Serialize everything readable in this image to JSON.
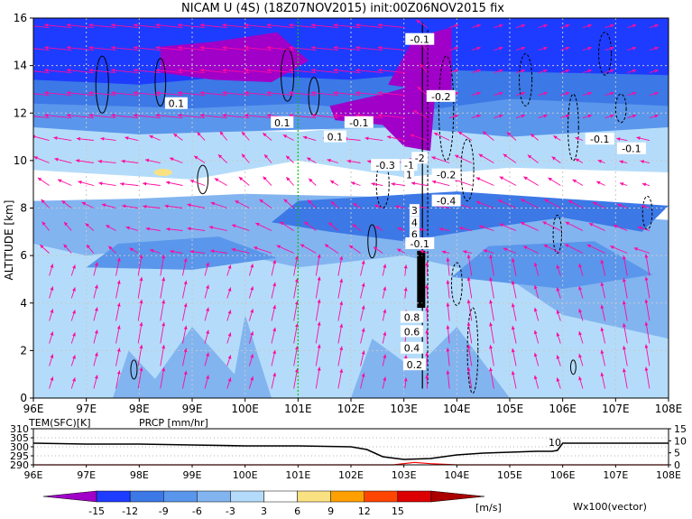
{
  "chart_data": [
    {
      "type": "heatmap",
      "title": "NICAM U (4S) (18Z07NOV2015) init:00Z06NOV2015 fix",
      "ylabel": "ALTITUDE [km]",
      "xlim": [
        96,
        108
      ],
      "ylim": [
        0,
        16
      ],
      "x_ticks": [
        "96E",
        "97E",
        "98E",
        "99E",
        "100E",
        "101E",
        "102E",
        "103E",
        "104E",
        "105E",
        "106E",
        "107E",
        "108E"
      ],
      "y_ticks": [
        "0",
        "2",
        "4",
        "6",
        "8",
        "10",
        "12",
        "14",
        "16"
      ],
      "grid": true,
      "marked_longitude": 101,
      "contour_labels": [
        {
          "x": 103.3,
          "y": 15.1,
          "text": "-0.1"
        },
        {
          "x": 103.7,
          "y": 12.7,
          "text": "-0.2"
        },
        {
          "x": 98.7,
          "y": 12.4,
          "text": "0.1"
        },
        {
          "x": 100.7,
          "y": 11.6,
          "text": "0.1"
        },
        {
          "x": 102.15,
          "y": 11.6,
          "text": "-0.1"
        },
        {
          "x": 101.7,
          "y": 11.0,
          "text": "0.1"
        },
        {
          "x": 106.7,
          "y": 10.9,
          "text": "-0.1"
        },
        {
          "x": 107.3,
          "y": 10.5,
          "text": "-0.1"
        },
        {
          "x": 102.65,
          "y": 9.8,
          "text": "-0.3"
        },
        {
          "x": 103.1,
          "y": 9.8,
          "text": "-1"
        },
        {
          "x": 103.3,
          "y": 10.1,
          "text": "-2"
        },
        {
          "x": 103.1,
          "y": 9.4,
          "text": "1"
        },
        {
          "x": 103.8,
          "y": 9.4,
          "text": "-0.2"
        },
        {
          "x": 103.8,
          "y": 8.3,
          "text": "-0.4"
        },
        {
          "x": 103.2,
          "y": 7.9,
          "text": "3"
        },
        {
          "x": 103.2,
          "y": 7.4,
          "text": "4"
        },
        {
          "x": 103.2,
          "y": 6.9,
          "text": "6"
        },
        {
          "x": 103.3,
          "y": 6.5,
          "text": "-0.1"
        },
        {
          "x": 103.15,
          "y": 3.4,
          "text": "0.8"
        },
        {
          "x": 103.15,
          "y": 2.8,
          "text": "0.6"
        },
        {
          "x": 103.15,
          "y": 2.1,
          "text": "0.4"
        },
        {
          "x": 103.2,
          "y": 1.4,
          "text": "0.2"
        }
      ]
    },
    {
      "type": "line",
      "series": [
        {
          "name": "TEM(SFC)[K]",
          "x": [
            96,
            97,
            98,
            99,
            100,
            101,
            102,
            102.3,
            102.6,
            103,
            103.5,
            104,
            104.5,
            105,
            105.5,
            105.8,
            105.9,
            106,
            106.5,
            107,
            108
          ],
          "values": [
            302,
            301.5,
            301.5,
            301,
            300.5,
            300.5,
            300,
            298.5,
            294.5,
            293,
            293.5,
            295.5,
            296.5,
            297,
            297.5,
            297.5,
            298,
            302,
            302,
            302,
            302
          ]
        },
        {
          "name": "PRCP [mm/hr]",
          "x": [
            96,
            102.8,
            103.2,
            103.5,
            104,
            108
          ],
          "values": [
            0,
            0,
            1,
            0.5,
            0,
            0
          ]
        }
      ],
      "left_ticks": [
        "310",
        "305",
        "300",
        "295",
        "290"
      ],
      "right_ticks": [
        "15",
        "10",
        "5",
        "0"
      ],
      "series_label_color": "#ff0000",
      "annotation": "10"
    }
  ],
  "colorbar": {
    "levels": [
      "-15",
      "-12",
      "-9",
      "-6",
      "-3",
      "3",
      "6",
      "9",
      "12",
      "15"
    ],
    "colors": [
      "#a000c8",
      "#1e3cff",
      "#3c78e6",
      "#5a96eb",
      "#82b4f0",
      "#b4dcfa",
      "#ffffff",
      "#fae182",
      "#ffa000",
      "#ff4600",
      "#dc0000",
      "#aa0000"
    ],
    "unit": "[m/s]"
  },
  "vector_label": "Wx100(vector)",
  "colors": {
    "vector": "#ff0aa0",
    "grid": "#c8c8c8",
    "marker_line": "#00c800"
  }
}
